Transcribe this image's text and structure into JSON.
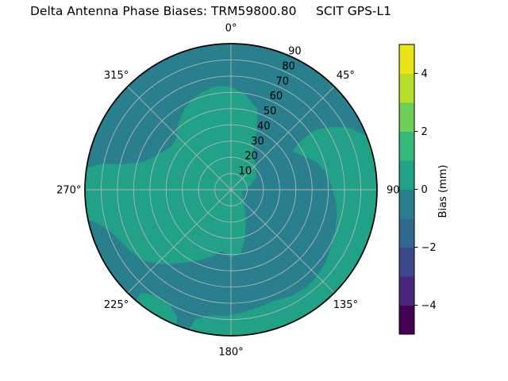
{
  "title": "Delta Antenna Phase Biases: TRM59800.80     SCIT GPS-L1",
  "colorbar_label": "Bias (mm)",
  "chart_data": {
    "type": "polar_contour",
    "title": "Delta Antenna Phase Biases: TRM59800.80     SCIT GPS-L1",
    "background": "#ffffff",
    "grid_color": "#b3b3b3",
    "rim_color": "#000000",
    "text_color": "#000000",
    "radial_axis": {
      "max": 90,
      "tick_values": [
        10,
        20,
        30,
        40,
        50,
        60,
        70,
        80,
        90
      ],
      "tick_labels": [
        "10",
        "20",
        "30",
        "40",
        "50",
        "60",
        "70",
        "80",
        "90"
      ],
      "label_angle_deg": 22.5
    },
    "angular_ticks": [
      {
        "az": 0,
        "label": "0°"
      },
      {
        "az": 45,
        "label": "45°"
      },
      {
        "az": 90,
        "label": "90"
      },
      {
        "az": 135,
        "label": "135°"
      },
      {
        "az": 180,
        "label": "180°"
      },
      {
        "az": 225,
        "label": "225°"
      },
      {
        "az": 270,
        "label": "270°"
      },
      {
        "az": 315,
        "label": "315°"
      }
    ],
    "base_region": {
      "name": "bias -1 to 0 mm",
      "color": "#2a7f8e"
    },
    "regions": [
      {
        "name": "bias 0 to 1 mm central mass",
        "color": "#21a186",
        "points_az_pct": [
          [
            355,
            71
          ],
          [
            0,
            70
          ],
          [
            8,
            66
          ],
          [
            13,
            61
          ],
          [
            18,
            58
          ],
          [
            23,
            44
          ],
          [
            28,
            32
          ],
          [
            34,
            27
          ],
          [
            42,
            24
          ],
          [
            50,
            22
          ],
          [
            62,
            19
          ],
          [
            75,
            14
          ],
          [
            85,
            10
          ],
          [
            95,
            7
          ],
          [
            108,
            7
          ],
          [
            122,
            9
          ],
          [
            135,
            12
          ],
          [
            148,
            18
          ],
          [
            158,
            26
          ],
          [
            166,
            36
          ],
          [
            172,
            44
          ],
          [
            180,
            46
          ],
          [
            188,
            42
          ],
          [
            196,
            47
          ],
          [
            205,
            53
          ],
          [
            212,
            58
          ],
          [
            218,
            64
          ],
          [
            224,
            70
          ],
          [
            230,
            76
          ],
          [
            238,
            80
          ],
          [
            245,
            83
          ],
          [
            251,
            87
          ],
          [
            256,
            94
          ],
          [
            259,
            102
          ],
          [
            268,
            102
          ],
          [
            278,
            102
          ],
          [
            281,
            90
          ],
          [
            283,
            76
          ],
          [
            287,
            63
          ],
          [
            293,
            57
          ],
          [
            299,
            53
          ],
          [
            306,
            50
          ],
          [
            313,
            51
          ],
          [
            319,
            56
          ],
          [
            325,
            60
          ],
          [
            331,
            64
          ],
          [
            337,
            67
          ],
          [
            343,
            69
          ],
          [
            350,
            71
          ]
        ]
      },
      {
        "name": "bias 0 to 1 mm east-south rim band",
        "color": "#21a186",
        "points_az_pct": [
          [
            58,
            50
          ],
          [
            55,
            60
          ],
          [
            55,
            70
          ],
          [
            58,
            80
          ],
          [
            62,
            90
          ],
          [
            66,
            96
          ],
          [
            70,
            102
          ],
          [
            78,
            102
          ],
          [
            90,
            102
          ],
          [
            102,
            102
          ],
          [
            114,
            102
          ],
          [
            126,
            102
          ],
          [
            138,
            102
          ],
          [
            150,
            102
          ],
          [
            162,
            102
          ],
          [
            174,
            102
          ],
          [
            184,
            102
          ],
          [
            192,
            102
          ],
          [
            197,
            102
          ],
          [
            195,
            92
          ],
          [
            190,
            88
          ],
          [
            183,
            87
          ],
          [
            175,
            85
          ],
          [
            167,
            83
          ],
          [
            159,
            82
          ],
          [
            151,
            84
          ],
          [
            143,
            85
          ],
          [
            135,
            84
          ],
          [
            127,
            82
          ],
          [
            119,
            79
          ],
          [
            111,
            77
          ],
          [
            103,
            75
          ],
          [
            95,
            72
          ],
          [
            87,
            69
          ],
          [
            79,
            66
          ],
          [
            72,
            62
          ],
          [
            65,
            55
          ]
        ]
      },
      {
        "name": "bias 0 to 1 mm southwest rim arc",
        "color": "#21a186",
        "points_az_pct": [
          [
            202,
            102
          ],
          [
            208,
            102
          ],
          [
            215,
            102
          ],
          [
            220,
            102
          ],
          [
            221,
            94
          ],
          [
            215,
            89
          ],
          [
            208,
            90
          ],
          [
            203,
            95
          ]
        ]
      }
    ],
    "colorbar": {
      "label": "Bias (mm)",
      "range": [
        -5,
        5
      ],
      "tick_values": [
        4,
        2,
        0,
        -2,
        -4
      ],
      "tick_labels": [
        "4",
        "2",
        "0",
        "−2",
        "−4"
      ],
      "band_colors": [
        "#440154",
        "#482878",
        "#3e4989",
        "#31688e",
        "#2a7f8e",
        "#21a186",
        "#35b779",
        "#6ece58",
        "#b5de2b",
        "#e8e419"
      ]
    }
  }
}
